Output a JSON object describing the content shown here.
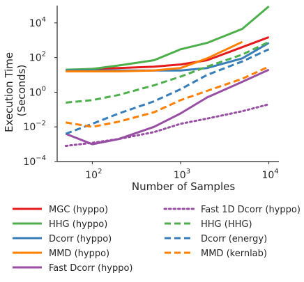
{
  "chart_data": {
    "type": "line",
    "title": "",
    "xlabel": "Number of Samples",
    "ylabel_lines": [
      "Execution Time",
      "(Seconds)"
    ],
    "xscale": "log",
    "yscale": "log",
    "xlim": [
      40,
      13000
    ],
    "ylim": [
      0.0001,
      100000
    ],
    "x_ticks": [
      {
        "value": 100,
        "base": "10",
        "exp": "2"
      },
      {
        "value": 1000,
        "base": "10",
        "exp": "3"
      },
      {
        "value": 10000,
        "base": "10",
        "exp": "4"
      }
    ],
    "y_ticks": [
      {
        "value": 0.0001,
        "base": "10",
        "exp": "−4"
      },
      {
        "value": 0.01,
        "base": "10",
        "exp": "−2"
      },
      {
        "value": 1,
        "base": "10",
        "exp": "0"
      },
      {
        "value": 100,
        "base": "10",
        "exp": "2"
      },
      {
        "value": 10000,
        "base": "10",
        "exp": "4"
      }
    ],
    "grid": false,
    "legend_placement": "bottom",
    "series": [
      {
        "name": "MGC (hyppo)",
        "color": "#e41a1c",
        "dash": "solid",
        "x": [
          50,
          100,
          200,
          500,
          1000,
          2000,
          5000,
          10000
        ],
        "y": [
          18,
          22,
          25,
          30,
          40,
          70,
          400,
          1500
        ]
      },
      {
        "name": "HHG (hyppo)",
        "color": "#4daf4a",
        "dash": "solid",
        "x": [
          50,
          100,
          200,
          500,
          1000,
          2000,
          5000,
          10000
        ],
        "y": [
          20,
          22,
          35,
          70,
          300,
          700,
          4500,
          90000
        ]
      },
      {
        "name": "Dcorr (hyppo)",
        "color": "#377eb8",
        "dash": "solid",
        "x": [
          50,
          100,
          200,
          500,
          1000,
          2000,
          5000,
          10000
        ],
        "y": [
          18,
          18,
          18,
          18,
          18,
          25,
          90,
          700
        ]
      },
      {
        "name": "MMD (hyppo)",
        "color": "#ff7f00",
        "dash": "solid",
        "x": [
          50,
          100,
          200,
          500,
          1000,
          2000,
          5000
        ],
        "y": [
          16,
          16,
          16,
          18,
          25,
          90,
          800
        ]
      },
      {
        "name": "Fast Dcorr (hyppo)",
        "color": "#984ea3",
        "dash": "solid",
        "x": [
          50,
          100,
          200,
          500,
          1000,
          2000,
          5000,
          10000
        ],
        "y": [
          0.004,
          0.001,
          0.002,
          0.01,
          0.06,
          0.5,
          4,
          20
        ]
      },
      {
        "name": "Fast 1D Dcorr (hyppo)",
        "color": "#984ea3",
        "dash": "dotted",
        "x": [
          50,
          100,
          200,
          500,
          1000,
          2000,
          5000,
          10000
        ],
        "y": [
          0.0008,
          0.0012,
          0.002,
          0.005,
          0.015,
          0.03,
          0.08,
          0.2
        ]
      },
      {
        "name": "HHG (HHG)",
        "color": "#4daf4a",
        "dash": "dashed",
        "x": [
          50,
          100,
          200,
          500,
          1000,
          2000,
          5000,
          10000
        ],
        "y": [
          0.25,
          0.35,
          0.7,
          2.5,
          8,
          30,
          150,
          800
        ]
      },
      {
        "name": "Dcorr (energy)",
        "color": "#377eb8",
        "dash": "dashed",
        "x": [
          50,
          100,
          200,
          500,
          1000,
          2000,
          5000,
          10000
        ],
        "y": [
          0.004,
          0.015,
          0.06,
          0.3,
          1.5,
          10,
          60,
          300
        ]
      },
      {
        "name": "MMD (kernlab)",
        "color": "#ff7f00",
        "dash": "dashed",
        "x": [
          50,
          100,
          200,
          500,
          1000,
          2000,
          5000,
          10000
        ],
        "y": [
          0.018,
          0.01,
          0.02,
          0.07,
          0.35,
          1.2,
          6,
          30
        ]
      }
    ]
  }
}
